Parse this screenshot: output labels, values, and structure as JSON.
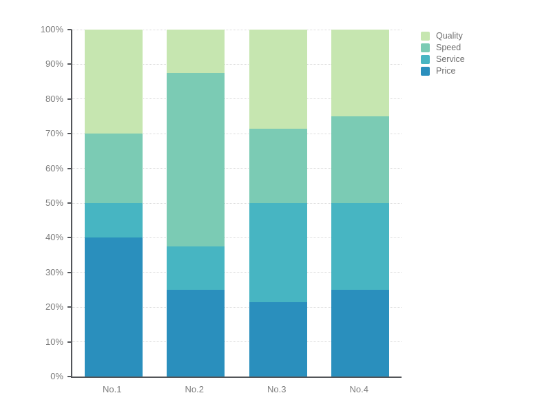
{
  "chart_data": {
    "type": "bar",
    "stacked": true,
    "percent": true,
    "title": "",
    "xlabel": "",
    "ylabel": "",
    "categories": [
      "No.1",
      "No.2",
      "No.3",
      "No.4"
    ],
    "series": [
      {
        "name": "Price",
        "color": "#2a8fbd",
        "values": [
          40,
          25,
          21.4,
          25
        ]
      },
      {
        "name": "Service",
        "color": "#47b5c2",
        "values": [
          10,
          12.5,
          28.6,
          25
        ]
      },
      {
        "name": "Speed",
        "color": "#7bcbb4",
        "values": [
          20,
          50,
          21.4,
          25
        ]
      },
      {
        "name": "Quality",
        "color": "#c6e6b0",
        "values": [
          30,
          12.5,
          28.6,
          25
        ]
      }
    ],
    "legend": {
      "position": "top-right",
      "order": [
        "Quality",
        "Speed",
        "Service",
        "Price"
      ]
    },
    "y_axis": {
      "min": 0,
      "max": 100,
      "tick_step": 10,
      "tick_labels": [
        "0%",
        "10%",
        "20%",
        "30%",
        "40%",
        "50%",
        "60%",
        "70%",
        "80%",
        "90%",
        "100%"
      ]
    },
    "grid": true
  },
  "colors": {
    "background": "#ffffff",
    "axis_line": "#535559",
    "tick_label": "#7d7d7d",
    "legend_label": "#6e6e6e",
    "gridline": "#d8d8d8"
  }
}
